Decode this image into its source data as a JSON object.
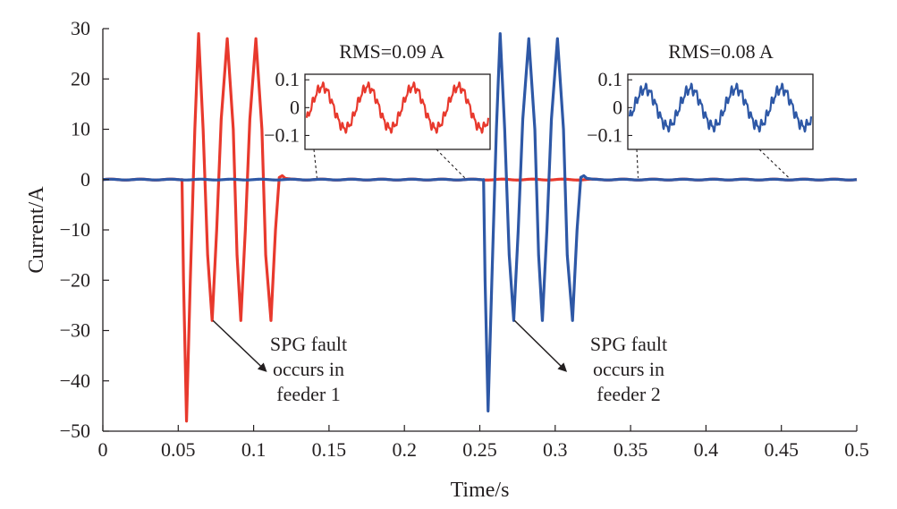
{
  "chart_data": {
    "type": "line",
    "xlabel": "Time/s",
    "ylabel": "Current/A",
    "xlim": [
      0,
      0.5
    ],
    "ylim": [
      -50,
      30
    ],
    "x_ticks": [
      "0",
      "0.05",
      "0.1",
      "0.15",
      "0.2",
      "0.25",
      "0.3",
      "0.35",
      "0.4",
      "0.45",
      "0.5"
    ],
    "y_ticks": [
      "30",
      "20",
      "10",
      "0",
      "−10",
      "−20",
      "−30",
      "−40",
      "−50"
    ],
    "grid": false,
    "colors": {
      "feeder1": "#e8392d",
      "feeder2": "#2e58a6"
    },
    "series": [
      {
        "color": "#e8392d",
        "points": [
          [
            0,
            0
          ],
          [
            0.0525,
            0
          ],
          [
            0.0535,
            -20
          ],
          [
            0.0555,
            -48
          ],
          [
            0.058,
            -20
          ],
          [
            0.061,
            10
          ],
          [
            0.0635,
            29
          ],
          [
            0.0665,
            10
          ],
          [
            0.0695,
            -15
          ],
          [
            0.0725,
            -28
          ],
          [
            0.0755,
            -10
          ],
          [
            0.0785,
            12
          ],
          [
            0.0825,
            28
          ],
          [
            0.0865,
            10
          ],
          [
            0.089,
            -15
          ],
          [
            0.0915,
            -28
          ],
          [
            0.0945,
            -10
          ],
          [
            0.0975,
            12
          ],
          [
            0.1015,
            28
          ],
          [
            0.1055,
            10
          ],
          [
            0.108,
            -15
          ],
          [
            0.1115,
            -28
          ],
          [
            0.1145,
            -10
          ],
          [
            0.117,
            0.5
          ],
          [
            0.119,
            0.8
          ],
          [
            0.121,
            0.2
          ],
          [
            0.125,
            0
          ],
          [
            0.5,
            0
          ]
        ],
        "ripple_amplitude": 0.09
      },
      {
        "color": "#2e58a6",
        "points": [
          [
            0,
            0
          ],
          [
            0.2525,
            0
          ],
          [
            0.2535,
            -20
          ],
          [
            0.2555,
            -46
          ],
          [
            0.258,
            -20
          ],
          [
            0.261,
            10
          ],
          [
            0.2635,
            29
          ],
          [
            0.2665,
            10
          ],
          [
            0.2695,
            -15
          ],
          [
            0.2725,
            -28
          ],
          [
            0.2755,
            -10
          ],
          [
            0.2785,
            12
          ],
          [
            0.2825,
            28
          ],
          [
            0.2865,
            10
          ],
          [
            0.289,
            -15
          ],
          [
            0.2915,
            -28
          ],
          [
            0.2945,
            -10
          ],
          [
            0.2975,
            12
          ],
          [
            0.3015,
            28
          ],
          [
            0.3055,
            10
          ],
          [
            0.308,
            -15
          ],
          [
            0.3115,
            -28
          ],
          [
            0.3145,
            -10
          ],
          [
            0.317,
            0.5
          ],
          [
            0.319,
            0.8
          ],
          [
            0.321,
            0.2
          ],
          [
            0.325,
            0
          ],
          [
            0.5,
            0
          ]
        ],
        "ripple_amplitude": 0.08
      }
    ],
    "annotations": [
      {
        "label_lines": [
          "SPG fault",
          "occurs in",
          "feeder 1"
        ],
        "arrow_from": [
          0.073,
          -28
        ],
        "arrow_to": [
          0.108,
          -38
        ]
      },
      {
        "label_lines": [
          "SPG fault",
          "occurs in",
          "feeder 2"
        ],
        "arrow_from": [
          0.273,
          -28
        ],
        "arrow_to": [
          0.307,
          -38
        ]
      }
    ],
    "insets": [
      {
        "title": "RMS=0.09 A",
        "color": "#e8392d",
        "ylim": [
          -0.15,
          0.12
        ],
        "y_ticks": [
          "0.1",
          "0",
          "−0.1"
        ],
        "y_tick_values": [
          0.1,
          0,
          -0.1
        ],
        "zoom_from": [
          0.142,
          0.24
        ],
        "cycles": 4,
        "amplitude": 0.075,
        "harmonic_amplitude": 0.012
      },
      {
        "title": "RMS=0.08 A",
        "color": "#2e58a6",
        "ylim": [
          -0.15,
          0.12
        ],
        "y_ticks": [
          "0.1",
          "0",
          "−0.1"
        ],
        "y_tick_values": [
          0.1,
          0,
          -0.1
        ],
        "zoom_from": [
          0.355,
          0.455
        ],
        "cycles": 4,
        "amplitude": 0.068,
        "harmonic_amplitude": 0.014
      }
    ]
  }
}
